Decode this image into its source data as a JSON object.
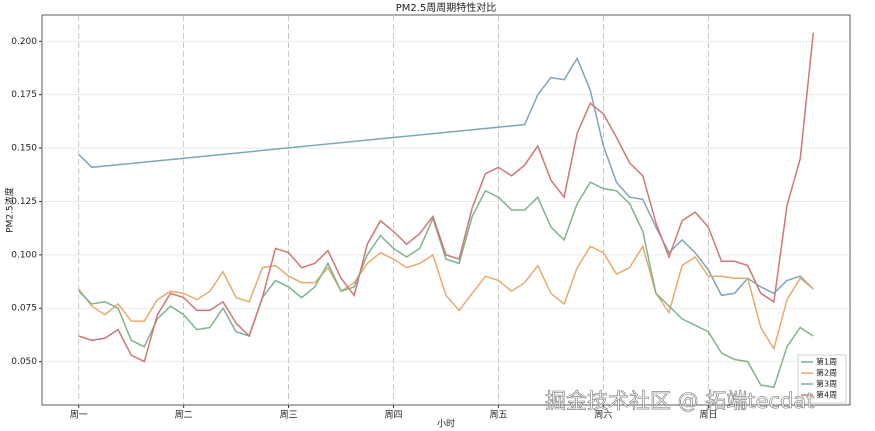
{
  "chart_data": {
    "type": "line",
    "title": "PM2.5周周期特性对比",
    "x_label": "小时",
    "y_label": "PM2.5浓度",
    "watermark": "掘金技术社区 @ 拓端tecdat",
    "x": [
      0,
      1,
      2,
      3,
      4,
      5,
      6,
      7,
      8,
      9,
      10,
      11,
      12,
      13,
      14,
      15,
      16,
      17,
      18,
      19,
      20,
      21,
      22,
      23,
      24,
      25,
      26,
      27,
      28,
      29,
      30,
      31,
      32,
      33,
      34,
      35,
      36,
      37,
      38,
      39,
      40,
      41,
      42,
      43,
      44,
      45,
      46,
      47,
      48,
      49,
      50,
      51,
      52,
      53,
      54,
      55,
      56
    ],
    "xlim": [
      -2.8,
      58.8
    ],
    "xticks": [
      {
        "value": 0,
        "label": "周一"
      },
      {
        "value": 8,
        "label": "周二"
      },
      {
        "value": 16,
        "label": "周三"
      },
      {
        "value": 24,
        "label": "周四"
      },
      {
        "value": 32,
        "label": "周五"
      },
      {
        "value": 40,
        "label": "周六"
      },
      {
        "value": 48,
        "label": "周日"
      }
    ],
    "ylim": [
      0.0297,
      0.2123
    ],
    "yticks": [
      {
        "value": 0.05,
        "label": "0.050"
      },
      {
        "value": 0.075,
        "label": "0.075"
      },
      {
        "value": 0.1,
        "label": "0.100"
      },
      {
        "value": 0.125,
        "label": "0.125"
      },
      {
        "value": 0.15,
        "label": "0.150"
      },
      {
        "value": 0.175,
        "label": "0.175"
      },
      {
        "value": 0.2,
        "label": "0.200"
      }
    ],
    "grid": true,
    "legend": "lower right",
    "series": [
      {
        "name": "第1周",
        "color": "#7fa4bb",
        "x": [
          0,
          1,
          34,
          35,
          36,
          37,
          38,
          39,
          40,
          41,
          42,
          43,
          44,
          45,
          46,
          47,
          48,
          49,
          50,
          51,
          52,
          53,
          54,
          55,
          56
        ],
        "values": [
          0.147,
          0.141,
          0.161,
          0.175,
          0.183,
          0.182,
          0.192,
          0.177,
          0.151,
          0.134,
          0.127,
          0.126,
          0.113,
          0.101,
          0.107,
          0.101,
          0.093,
          0.081,
          0.082,
          0.089,
          0.085,
          0.082,
          0.088,
          0.09,
          0.084
        ]
      },
      {
        "name": "第2周",
        "color": "#e8ab6c",
        "values": [
          0.084,
          0.076,
          0.072,
          0.077,
          0.069,
          0.069,
          0.079,
          0.083,
          0.082,
          0.079,
          0.083,
          0.092,
          0.08,
          0.078,
          0.094,
          0.095,
          0.09,
          0.087,
          0.087,
          0.094,
          0.083,
          0.087,
          0.096,
          0.101,
          0.098,
          0.094,
          0.096,
          0.1,
          0.081,
          0.074,
          0.082,
          0.09,
          0.088,
          0.083,
          0.087,
          0.095,
          0.082,
          0.077,
          0.094,
          0.104,
          0.101,
          0.091,
          0.094,
          0.104,
          0.082,
          0.073,
          0.095,
          0.099,
          0.09,
          0.09,
          0.089,
          0.089,
          0.066,
          0.056,
          0.079,
          0.089,
          0.084
        ]
      },
      {
        "name": "第3周",
        "color": "#7fb58c",
        "values": [
          0.083,
          0.077,
          0.078,
          0.075,
          0.06,
          0.057,
          0.07,
          0.076,
          0.072,
          0.065,
          0.066,
          0.075,
          0.064,
          0.062,
          0.08,
          0.088,
          0.085,
          0.08,
          0.085,
          0.096,
          0.083,
          0.085,
          0.1,
          0.109,
          0.103,
          0.099,
          0.103,
          0.117,
          0.098,
          0.096,
          0.118,
          0.13,
          0.127,
          0.121,
          0.121,
          0.127,
          0.113,
          0.107,
          0.124,
          0.134,
          0.131,
          0.13,
          0.124,
          0.111,
          0.082,
          0.076,
          0.07,
          0.067,
          0.064,
          0.054,
          0.051,
          0.05,
          0.039,
          0.038,
          0.057,
          0.066,
          0.062
        ]
      },
      {
        "name": "第4周",
        "color": "#d27676",
        "values": [
          0.062,
          0.06,
          0.061,
          0.065,
          0.053,
          0.05,
          0.072,
          0.082,
          0.08,
          0.074,
          0.074,
          0.078,
          0.068,
          0.062,
          0.08,
          0.103,
          0.101,
          0.094,
          0.096,
          0.102,
          0.089,
          0.081,
          0.105,
          0.116,
          0.111,
          0.105,
          0.11,
          0.118,
          0.1,
          0.098,
          0.122,
          0.138,
          0.141,
          0.137,
          0.142,
          0.151,
          0.135,
          0.127,
          0.157,
          0.171,
          0.166,
          0.155,
          0.143,
          0.137,
          0.115,
          0.099,
          0.116,
          0.12,
          0.113,
          0.097,
          0.097,
          0.095,
          0.082,
          0.078,
          0.123,
          0.145,
          0.204
        ]
      }
    ]
  }
}
